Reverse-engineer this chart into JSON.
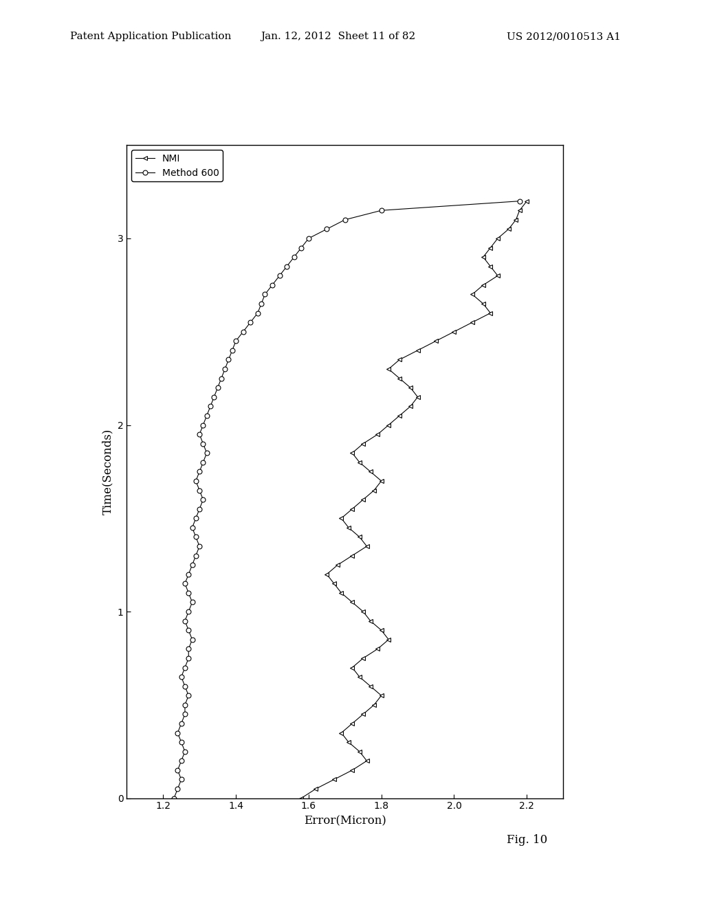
{
  "title": "",
  "xlabel": "Error(Micron)",
  "ylabel": "Time(Seconds)",
  "xlim": [
    1.1,
    2.3
  ],
  "ylim": [
    0,
    3.5
  ],
  "xticks": [
    1.2,
    1.4,
    1.6,
    1.8,
    2.0,
    2.2
  ],
  "yticks": [
    0,
    1,
    2,
    3
  ],
  "legend_labels": [
    "NMI",
    "Method 600"
  ],
  "nmi_time": [
    0.0,
    0.05,
    0.1,
    0.15,
    0.2,
    0.25,
    0.3,
    0.35,
    0.4,
    0.45,
    0.5,
    0.55,
    0.6,
    0.65,
    0.7,
    0.75,
    0.8,
    0.85,
    0.9,
    0.95,
    1.0,
    1.05,
    1.1,
    1.15,
    1.2,
    1.25,
    1.3,
    1.35,
    1.4,
    1.45,
    1.5,
    1.55,
    1.6,
    1.65,
    1.7,
    1.75,
    1.8,
    1.85,
    1.9,
    1.95,
    2.0,
    2.05,
    2.1,
    2.15,
    2.2,
    2.25,
    2.3,
    2.35,
    2.4,
    2.45,
    2.5,
    2.55,
    2.6,
    2.65,
    2.7,
    2.75,
    2.8,
    2.85,
    2.9,
    2.95,
    3.0,
    3.05,
    3.1,
    3.15,
    3.2
  ],
  "nmi_error": [
    1.58,
    1.62,
    1.67,
    1.72,
    1.76,
    1.74,
    1.71,
    1.69,
    1.72,
    1.75,
    1.78,
    1.8,
    1.77,
    1.74,
    1.72,
    1.75,
    1.79,
    1.82,
    1.8,
    1.77,
    1.75,
    1.72,
    1.69,
    1.67,
    1.65,
    1.68,
    1.72,
    1.76,
    1.74,
    1.71,
    1.69,
    1.72,
    1.75,
    1.78,
    1.8,
    1.77,
    1.74,
    1.72,
    1.75,
    1.79,
    1.82,
    1.85,
    1.88,
    1.9,
    1.88,
    1.85,
    1.82,
    1.85,
    1.9,
    1.95,
    2.0,
    2.05,
    2.1,
    2.08,
    2.05,
    2.08,
    2.12,
    2.1,
    2.08,
    2.1,
    2.12,
    2.15,
    2.17,
    2.18,
    2.2
  ],
  "m600_time": [
    0.0,
    0.05,
    0.1,
    0.15,
    0.2,
    0.25,
    0.3,
    0.35,
    0.4,
    0.45,
    0.5,
    0.55,
    0.6,
    0.65,
    0.7,
    0.75,
    0.8,
    0.85,
    0.9,
    0.95,
    1.0,
    1.05,
    1.1,
    1.15,
    1.2,
    1.25,
    1.3,
    1.35,
    1.4,
    1.45,
    1.5,
    1.55,
    1.6,
    1.65,
    1.7,
    1.75,
    1.8,
    1.85,
    1.9,
    1.95,
    2.0,
    2.05,
    2.1,
    2.15,
    2.2,
    2.25,
    2.3,
    2.35,
    2.4,
    2.45,
    2.5,
    2.55,
    2.6,
    2.65,
    2.7,
    2.75,
    2.8,
    2.85,
    2.9,
    2.95,
    3.0,
    3.05,
    3.1,
    3.15,
    3.2
  ],
  "m600_error": [
    1.23,
    1.24,
    1.25,
    1.24,
    1.25,
    1.26,
    1.25,
    1.24,
    1.25,
    1.26,
    1.26,
    1.27,
    1.26,
    1.25,
    1.26,
    1.27,
    1.27,
    1.28,
    1.27,
    1.26,
    1.27,
    1.28,
    1.27,
    1.26,
    1.27,
    1.28,
    1.29,
    1.3,
    1.29,
    1.28,
    1.29,
    1.3,
    1.31,
    1.3,
    1.29,
    1.3,
    1.31,
    1.32,
    1.31,
    1.3,
    1.31,
    1.32,
    1.33,
    1.34,
    1.35,
    1.36,
    1.37,
    1.38,
    1.39,
    1.4,
    1.42,
    1.44,
    1.46,
    1.47,
    1.48,
    1.5,
    1.52,
    1.54,
    1.56,
    1.58,
    1.6,
    1.65,
    1.7,
    1.8,
    2.18
  ],
  "background_color": "#ffffff",
  "line_color": "#000000",
  "fig_label_top": "Patent Application Publication",
  "fig_label_date": "Jan. 12, 2012  Sheet 11 of 82",
  "fig_label_patent": "US 2012/0010513 A1",
  "fig_caption": "Fig. 10"
}
